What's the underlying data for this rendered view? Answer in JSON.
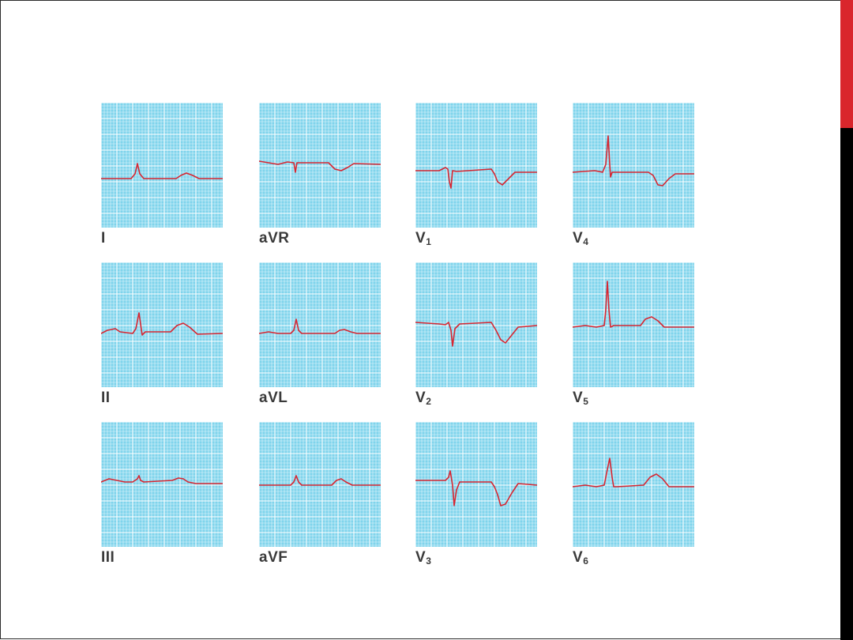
{
  "colors": {
    "grid_background": "#7fd4ec",
    "grid_minor": "#e3f6fc",
    "grid_major": "#ffffff",
    "trace": "#d72631",
    "accent_bar": "#d9262c",
    "side_bar": "#000000",
    "label": "#3a3a3a"
  },
  "leads": [
    {
      "id": "I",
      "name": "I",
      "sub": "",
      "shape": "upright_small"
    },
    {
      "id": "aVR",
      "name": "aVR",
      "sub": "",
      "shape": "inverted_small"
    },
    {
      "id": "V1",
      "name": "V",
      "sub": "1",
      "shape": "rS_inverted_T"
    },
    {
      "id": "V4",
      "name": "V",
      "sub": "4",
      "shape": "tall_R_inverted_T"
    },
    {
      "id": "II",
      "name": "II",
      "sub": "",
      "shape": "upright_medium"
    },
    {
      "id": "aVL",
      "name": "aVL",
      "sub": "",
      "shape": "upright_small_low"
    },
    {
      "id": "V2",
      "name": "V",
      "sub": "2",
      "shape": "rS_deep_inverted_T"
    },
    {
      "id": "V5",
      "name": "V",
      "sub": "5",
      "shape": "tall_R_upright_T"
    },
    {
      "id": "III",
      "name": "III",
      "sub": "",
      "shape": "flat_small"
    },
    {
      "id": "aVF",
      "name": "aVF",
      "sub": "",
      "shape": "upright_small_aVF"
    },
    {
      "id": "V3",
      "name": "V",
      "sub": "3",
      "shape": "RS_deep_inverted_T"
    },
    {
      "id": "V6",
      "name": "V",
      "sub": "6",
      "shape": "upright_R_upright_T"
    }
  ]
}
